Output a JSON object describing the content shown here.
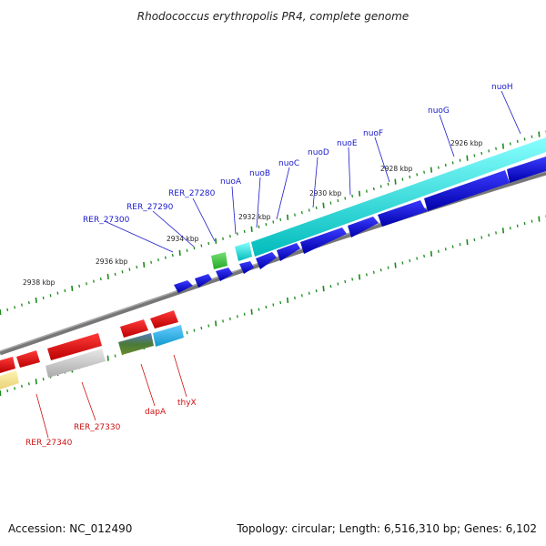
{
  "title": "Rhodococcus erythropolis PR4, complete genome",
  "footer": {
    "accession": "Accession: NC_012490",
    "summary": "Topology: circular; Length: 6,516,310 bp; Genes: 6,102"
  },
  "colors": {
    "forward_label": "#1a1acc",
    "reverse_label": "#cc1111",
    "backbone": "#888888",
    "tick": "#1a8a1a"
  },
  "ticks": [
    {
      "label": "2926 kbp"
    },
    {
      "label": "2928 kbp"
    },
    {
      "label": "2930 kbp"
    },
    {
      "label": "2932 kbp"
    },
    {
      "label": "2934 kbp"
    },
    {
      "label": "2936 kbp"
    },
    {
      "label": "2938 kbp"
    }
  ],
  "forward_labels": [
    "nuoH",
    "nuoG",
    "nuoF",
    "nuoE",
    "nuoD",
    "nuoC",
    "nuoB",
    "nuoA",
    "RER_27280",
    "RER_27290",
    "RER_27300"
  ],
  "reverse_labels": [
    "RER_27340",
    "RER_27330",
    "dapA",
    "thyX"
  ]
}
